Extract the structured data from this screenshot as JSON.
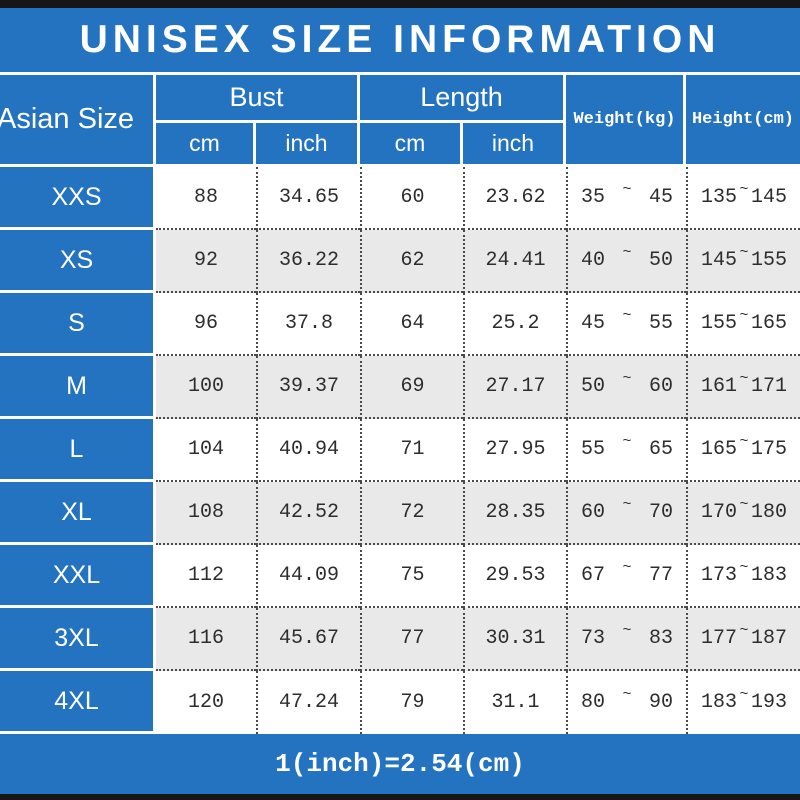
{
  "title": "UNISEX SIZE INFORMATION",
  "colors": {
    "accent_blue": "#2373c1",
    "row_alt_gray": "#e9e9e9",
    "frame_black": "#161616",
    "number_ink": "#2d2d2d"
  },
  "table": {
    "headers": {
      "size": "Asian Size",
      "bust": "Bust",
      "length": "Length",
      "weight": "Weight(kg)",
      "height": "Height(cm)",
      "unit_cm": "cm",
      "unit_inch": "inch"
    },
    "range_separator": "~",
    "rows": [
      {
        "size": "XXS",
        "bust_cm": "88",
        "bust_inch": "34.65",
        "length_cm": "60",
        "length_inch": "23.62",
        "weight_min": "35",
        "weight_max": "45",
        "height_min": "135",
        "height_max": "145"
      },
      {
        "size": "XS",
        "bust_cm": "92",
        "bust_inch": "36.22",
        "length_cm": "62",
        "length_inch": "24.41",
        "weight_min": "40",
        "weight_max": "50",
        "height_min": "145",
        "height_max": "155"
      },
      {
        "size": "S",
        "bust_cm": "96",
        "bust_inch": "37.8",
        "length_cm": "64",
        "length_inch": "25.2",
        "weight_min": "45",
        "weight_max": "55",
        "height_min": "155",
        "height_max": "165"
      },
      {
        "size": "M",
        "bust_cm": "100",
        "bust_inch": "39.37",
        "length_cm": "69",
        "length_inch": "27.17",
        "weight_min": "50",
        "weight_max": "60",
        "height_min": "161",
        "height_max": "171"
      },
      {
        "size": "L",
        "bust_cm": "104",
        "bust_inch": "40.94",
        "length_cm": "71",
        "length_inch": "27.95",
        "weight_min": "55",
        "weight_max": "65",
        "height_min": "165",
        "height_max": "175"
      },
      {
        "size": "XL",
        "bust_cm": "108",
        "bust_inch": "42.52",
        "length_cm": "72",
        "length_inch": "28.35",
        "weight_min": "60",
        "weight_max": "70",
        "height_min": "170",
        "height_max": "180"
      },
      {
        "size": "XXL",
        "bust_cm": "112",
        "bust_inch": "44.09",
        "length_cm": "75",
        "length_inch": "29.53",
        "weight_min": "67",
        "weight_max": "77",
        "height_min": "173",
        "height_max": "183"
      },
      {
        "size": "3XL",
        "bust_cm": "116",
        "bust_inch": "45.67",
        "length_cm": "77",
        "length_inch": "30.31",
        "weight_min": "73",
        "weight_max": "83",
        "height_min": "177",
        "height_max": "187"
      },
      {
        "size": "4XL",
        "bust_cm": "120",
        "bust_inch": "47.24",
        "length_cm": "79",
        "length_inch": "31.1",
        "weight_min": "80",
        "weight_max": "90",
        "height_min": "183",
        "height_max": "193"
      }
    ]
  },
  "footer": {
    "conversion_note": "1(inch)=2.54(cm)"
  },
  "chart_data": {
    "type": "table",
    "title": "UNISEX SIZE INFORMATION",
    "columns": [
      "Asian Size",
      "Bust cm",
      "Bust inch",
      "Length cm",
      "Length inch",
      "Weight(kg)",
      "Height(cm)"
    ],
    "rows": [
      [
        "XXS",
        "88",
        "34.65",
        "60",
        "23.62",
        "35~45",
        "135~145"
      ],
      [
        "XS",
        "92",
        "36.22",
        "62",
        "24.41",
        "40~50",
        "145~155"
      ],
      [
        "S",
        "96",
        "37.8",
        "64",
        "25.2",
        "45~55",
        "155~165"
      ],
      [
        "M",
        "100",
        "39.37",
        "69",
        "27.17",
        "50~60",
        "161~171"
      ],
      [
        "L",
        "104",
        "40.94",
        "71",
        "27.95",
        "55~65",
        "165~175"
      ],
      [
        "XL",
        "108",
        "42.52",
        "72",
        "28.35",
        "60~70",
        "170~180"
      ],
      [
        "XXL",
        "112",
        "44.09",
        "75",
        "29.53",
        "67~77",
        "173~183"
      ],
      [
        "3XL",
        "116",
        "45.67",
        "77",
        "30.31",
        "73~83",
        "177~187"
      ],
      [
        "4XL",
        "120",
        "47.24",
        "79",
        "31.1",
        "80~90",
        "183~193"
      ]
    ],
    "footnote": "1(inch)=2.54(cm)"
  }
}
